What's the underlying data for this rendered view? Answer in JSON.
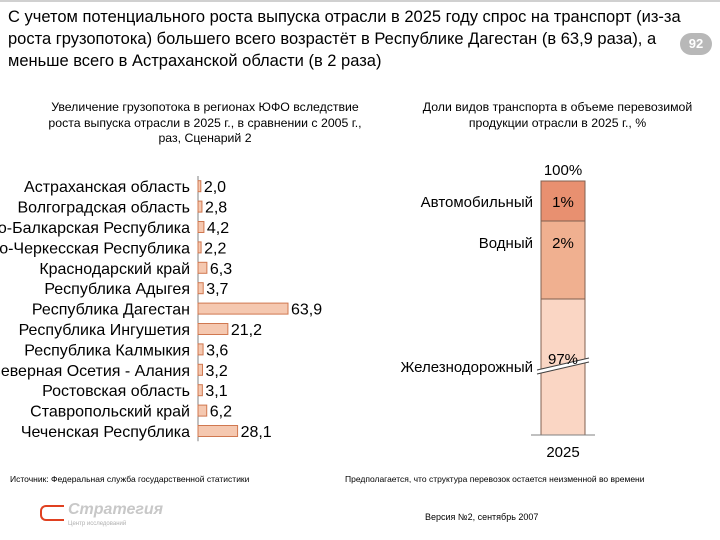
{
  "headline": "С учетом потенциального роста выпуска отрасли в 2025 году спрос на транспорт (из-за роста грузопотока) большего всего возрастёт в Республике Дагестан (в 63,9 раза), а меньше всего в Астраханской области (в 2 раза)",
  "page_number": "92",
  "chart_data": [
    {
      "type": "bar",
      "orientation": "horizontal",
      "title": "Увеличение грузопотока в регионах ЮФО вследствие роста выпуска отрасли в 2025 г., в сравнении с 2005 г., раз, Сценарий 2",
      "categories": [
        "Астраханская область",
        "Волгоградская область",
        "Кабардино-Балкарская Республика",
        "Карачаево-Черкесская Республика",
        "Краснодарский край",
        "Республика Адыгея",
        "Республика Дагестан",
        "Республика Ингушетия",
        "Республика Калмыкия",
        "Республика Северная Осетия - Алания",
        "Ростовская область",
        "Ставропольский край",
        "Чеченская Республика"
      ],
      "displayed_categories": [
        "Астраханская область",
        "Волгоградская область",
        "Кабардино-Балкарская Республика",
        "Карачаево-Черкесская Республика",
        "Краснодарский край",
        "Республика Адыгея",
        "Республика Дагестан",
        "Республика Ингушетия",
        "Республика Калмыкия",
        "Республика Северная Осетия - Алания",
        "Ростовская область",
        "Ставропольский край",
        "Чеченская Республика"
      ],
      "values": [
        2.0,
        2.8,
        4.2,
        2.2,
        6.3,
        3.7,
        63.9,
        21.2,
        3.6,
        3.2,
        3.1,
        6.2,
        28.1
      ],
      "value_labels": [
        "2,0",
        "2,8",
        "4,2",
        "2,2",
        "6,3",
        "3,7",
        "63,9",
        "21,2",
        "3,6",
        "3,2",
        "3,1",
        "6,2",
        "28,1"
      ],
      "xlim": [
        0,
        70
      ],
      "grid": false,
      "bar_color": "#f5c8b0",
      "bar_border": "#d07850"
    },
    {
      "type": "bar",
      "orientation": "vertical",
      "stacked": true,
      "title": "Доли видов транспорта в объеме перевозимой продукции отрасли в 2025 г., %",
      "categories": [
        "2025"
      ],
      "total_label": "100%",
      "series": [
        {
          "name": "Железнодорожный",
          "value": 97,
          "label": "97%",
          "color": "#fad6c4"
        },
        {
          "name": "Водный",
          "value": 2,
          "label": "2%",
          "color": "#f0b090"
        },
        {
          "name": "Автомобильный",
          "value": 1,
          "label": "1%",
          "color": "#e89070"
        }
      ],
      "axis_break": true
    }
  ],
  "footer": {
    "source": "Источник: Федеральная служба государственной статистики",
    "note": "Предполагается, что структура перевозок остается неизменной во времени",
    "version": "Версия №2, сентябрь 2007",
    "logo_text": "Стратегия",
    "logo_tagline": "Центр исследований"
  },
  "colors": {
    "bar_fill": "#f5c8b0",
    "bar_stroke": "#c86848",
    "badge": "#b8b8b8",
    "logo_accent": "#e04020"
  }
}
